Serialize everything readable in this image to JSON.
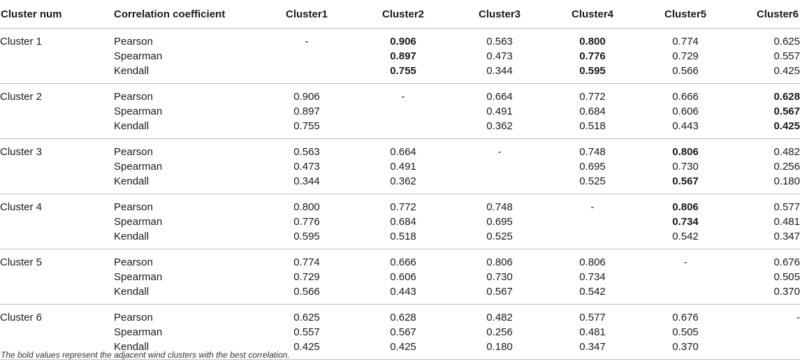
{
  "header": [
    "Cluster num",
    "Correlation coefficient",
    "Cluster1",
    "Cluster2",
    "Cluster3",
    "Cluster4",
    "Cluster5",
    "Cluster6"
  ],
  "groups": [
    {
      "name": "Cluster 1",
      "rows": [
        {
          "metric": "Pearson",
          "values": [
            "-",
            "0.906",
            "0.563",
            "0.800",
            "0.774",
            "0.625"
          ],
          "bold": [
            false,
            true,
            false,
            true,
            false,
            false
          ]
        },
        {
          "metric": "Spearman",
          "values": [
            "",
            "0.897",
            "0.473",
            "0.776",
            "0.729",
            "0.557"
          ],
          "bold": [
            false,
            true,
            false,
            true,
            false,
            false
          ]
        },
        {
          "metric": "Kendall",
          "values": [
            "",
            "0.755",
            "0.344",
            "0.595",
            "0.566",
            "0.425"
          ],
          "bold": [
            false,
            true,
            false,
            true,
            false,
            false
          ]
        }
      ]
    },
    {
      "name": "Cluster 2",
      "rows": [
        {
          "metric": "Pearson",
          "values": [
            "0.906",
            "-",
            "0.664",
            "0.772",
            "0.666",
            "0.628"
          ],
          "bold": [
            false,
            false,
            false,
            false,
            false,
            true
          ]
        },
        {
          "metric": "Spearman",
          "values": [
            "0.897",
            "",
            "0.491",
            "0.684",
            "0.606",
            "0.567"
          ],
          "bold": [
            false,
            false,
            false,
            false,
            false,
            true
          ]
        },
        {
          "metric": "Kendall",
          "values": [
            "0.755",
            "",
            "0.362",
            "0.518",
            "0.443",
            "0.425"
          ],
          "bold": [
            false,
            false,
            false,
            false,
            false,
            true
          ]
        }
      ]
    },
    {
      "name": "Cluster 3",
      "rows": [
        {
          "metric": "Pearson",
          "values": [
            "0.563",
            "0.664",
            "-",
            "0.748",
            "0.806",
            "0.482"
          ],
          "bold": [
            false,
            false,
            false,
            false,
            true,
            false
          ]
        },
        {
          "metric": "Spearman",
          "values": [
            "0.473",
            "0.491",
            "",
            "0.695",
            "0.730",
            "0.256"
          ],
          "bold": [
            false,
            false,
            false,
            false,
            false,
            false
          ]
        },
        {
          "metric": "Kendall",
          "values": [
            "0.344",
            "0.362",
            "",
            "0.525",
            "0.567",
            "0.180"
          ],
          "bold": [
            false,
            false,
            false,
            false,
            true,
            false
          ]
        }
      ]
    },
    {
      "name": "Cluster 4",
      "rows": [
        {
          "metric": "Pearson",
          "values": [
            "0.800",
            "0.772",
            "0.748",
            "-",
            "0.806",
            "0.577"
          ],
          "bold": [
            false,
            false,
            false,
            false,
            true,
            false
          ]
        },
        {
          "metric": "Spearman",
          "values": [
            "0.776",
            "0.684",
            "0.695",
            "",
            "0.734",
            "0.481"
          ],
          "bold": [
            false,
            false,
            false,
            false,
            true,
            false
          ]
        },
        {
          "metric": "Kendall",
          "values": [
            "0.595",
            "0.518",
            "0.525",
            "",
            "0.542",
            "0.347"
          ],
          "bold": [
            false,
            false,
            false,
            false,
            false,
            false
          ]
        }
      ]
    },
    {
      "name": "Cluster 5",
      "rows": [
        {
          "metric": "Pearson",
          "values": [
            "0.774",
            "0.666",
            "0.806",
            "0.806",
            "-",
            "0.676"
          ],
          "bold": [
            false,
            false,
            false,
            false,
            false,
            false
          ]
        },
        {
          "metric": "Spearman",
          "values": [
            "0.729",
            "0.606",
            "0.730",
            "0.734",
            "",
            "0.505"
          ],
          "bold": [
            false,
            false,
            false,
            false,
            false,
            false
          ]
        },
        {
          "metric": "Kendall",
          "values": [
            "0.566",
            "0.443",
            "0.567",
            "0.542",
            "",
            "0.370"
          ],
          "bold": [
            false,
            false,
            false,
            false,
            false,
            false
          ]
        }
      ]
    },
    {
      "name": "Cluster 6",
      "rows": [
        {
          "metric": "Pearson",
          "values": [
            "0.625",
            "0.628",
            "0.482",
            "0.577",
            "0.676",
            "-"
          ],
          "bold": [
            false,
            false,
            false,
            false,
            false,
            false
          ]
        },
        {
          "metric": "Spearman",
          "values": [
            "0.557",
            "0.567",
            "0.256",
            "0.481",
            "0.505",
            ""
          ],
          "bold": [
            false,
            false,
            false,
            false,
            false,
            false
          ]
        },
        {
          "metric": "Kendall",
          "values": [
            "0.425",
            "0.425",
            "0.180",
            "0.347",
            "0.370",
            ""
          ],
          "bold": [
            false,
            false,
            false,
            false,
            false,
            false
          ]
        }
      ]
    }
  ],
  "footnote": "The bold values represent the adjacent wind clusters with the best correlation."
}
